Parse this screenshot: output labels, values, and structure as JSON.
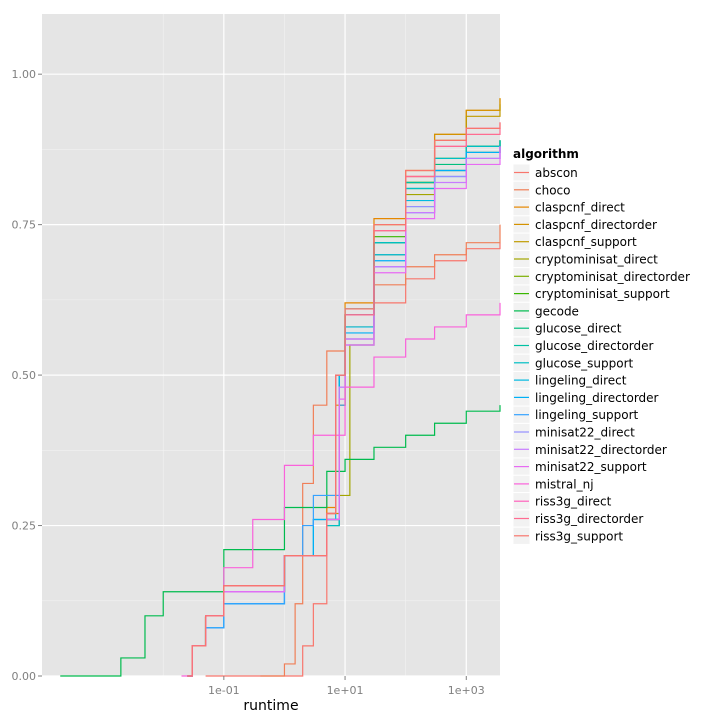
{
  "chart_data": {
    "type": "line",
    "step": true,
    "xlabel": "runtime",
    "ylabel": "",
    "x_scale": "log10",
    "xlim": [
      0.0001,
      3600
    ],
    "ylim": [
      0,
      1.1
    ],
    "x_ticks": [
      0.1,
      10,
      1000
    ],
    "x_tick_labels": [
      "1e-01",
      "1e+01",
      "1e+03"
    ],
    "x_minor_ticks": [
      0.01,
      1,
      100
    ],
    "y_ticks": [
      0,
      0.25,
      0.5,
      0.75,
      1.0
    ],
    "y_tick_labels": [
      "0.00",
      "0.25",
      "0.50",
      "0.75",
      "1.00"
    ],
    "grid": true,
    "legend_title": "algorithm",
    "legend_position": "right",
    "series": [
      {
        "name": "abscon",
        "color": "#F8766D",
        "points": [
          [
            0.05,
            0
          ],
          [
            1,
            0
          ],
          [
            2,
            0.05
          ],
          [
            3,
            0.12
          ],
          [
            5,
            0.3
          ],
          [
            8,
            0.5
          ],
          [
            10,
            0.56
          ],
          [
            30,
            0.62
          ],
          [
            100,
            0.66
          ],
          [
            300,
            0.69
          ],
          [
            1000,
            0.71
          ],
          [
            3600,
            0.72
          ]
        ]
      },
      {
        "name": "choco",
        "color": "#F07F58",
        "points": [
          [
            0.4,
            0
          ],
          [
            1,
            0.02
          ],
          [
            1.5,
            0.12
          ],
          [
            2,
            0.32
          ],
          [
            3,
            0.45
          ],
          [
            5,
            0.54
          ],
          [
            10,
            0.6
          ],
          [
            30,
            0.65
          ],
          [
            100,
            0.68
          ],
          [
            300,
            0.7
          ],
          [
            1000,
            0.72
          ],
          [
            3600,
            0.75
          ]
        ]
      },
      {
        "name": "claspcnf_direct",
        "color": "#E58700",
        "points": [
          [
            0.025,
            0
          ],
          [
            0.03,
            0.05
          ],
          [
            0.05,
            0.1
          ],
          [
            0.1,
            0.15
          ],
          [
            1,
            0.2
          ],
          [
            5,
            0.28
          ],
          [
            7,
            0.5
          ],
          [
            10,
            0.62
          ],
          [
            30,
            0.76
          ],
          [
            100,
            0.84
          ],
          [
            300,
            0.9
          ],
          [
            1000,
            0.94
          ],
          [
            3600,
            0.96
          ]
        ]
      },
      {
        "name": "claspcnf_directorder",
        "color": "#D49200",
        "points": [
          [
            0.025,
            0
          ],
          [
            0.03,
            0.05
          ],
          [
            0.05,
            0.1
          ],
          [
            0.1,
            0.15
          ],
          [
            1,
            0.2
          ],
          [
            5,
            0.27
          ],
          [
            7,
            0.45
          ],
          [
            10,
            0.6
          ],
          [
            30,
            0.75
          ],
          [
            100,
            0.83
          ],
          [
            300,
            0.9
          ],
          [
            1000,
            0.94
          ],
          [
            3600,
            0.96
          ]
        ]
      },
      {
        "name": "claspcnf_support",
        "color": "#C09B00",
        "points": [
          [
            0.025,
            0
          ],
          [
            0.03,
            0.05
          ],
          [
            0.05,
            0.1
          ],
          [
            0.1,
            0.15
          ],
          [
            1,
            0.2
          ],
          [
            5,
            0.27
          ],
          [
            8,
            0.45
          ],
          [
            10,
            0.58
          ],
          [
            30,
            0.74
          ],
          [
            100,
            0.82
          ],
          [
            300,
            0.89
          ],
          [
            1000,
            0.93
          ],
          [
            3600,
            0.95
          ]
        ]
      },
      {
        "name": "cryptominisat_direct",
        "color": "#A3A500",
        "points": [
          [
            0.025,
            0
          ],
          [
            0.03,
            0.05
          ],
          [
            0.05,
            0.1
          ],
          [
            0.1,
            0.14
          ],
          [
            1,
            0.2
          ],
          [
            5,
            0.26
          ],
          [
            8,
            0.3
          ],
          [
            12,
            0.55
          ],
          [
            30,
            0.7
          ],
          [
            100,
            0.8
          ],
          [
            300,
            0.84
          ],
          [
            1000,
            0.87
          ],
          [
            3600,
            0.89
          ]
        ]
      },
      {
        "name": "cryptominisat_directorder",
        "color": "#7CAE00",
        "points": [
          [
            0.025,
            0
          ],
          [
            0.03,
            0.05
          ],
          [
            0.05,
            0.1
          ],
          [
            0.1,
            0.14
          ],
          [
            1,
            0.2
          ],
          [
            5,
            0.26
          ],
          [
            8,
            0.5
          ],
          [
            10,
            0.6
          ],
          [
            30,
            0.72
          ],
          [
            100,
            0.82
          ],
          [
            300,
            0.86
          ],
          [
            1000,
            0.88
          ],
          [
            3600,
            0.89
          ]
        ]
      },
      {
        "name": "cryptominisat_support",
        "color": "#39B600",
        "points": [
          [
            0.025,
            0
          ],
          [
            0.03,
            0.05
          ],
          [
            0.05,
            0.1
          ],
          [
            0.1,
            0.14
          ],
          [
            1,
            0.2
          ],
          [
            5,
            0.26
          ],
          [
            8,
            0.5
          ],
          [
            10,
            0.6
          ],
          [
            30,
            0.73
          ],
          [
            100,
            0.82
          ],
          [
            300,
            0.86
          ],
          [
            1000,
            0.88
          ],
          [
            3600,
            0.89
          ]
        ]
      },
      {
        "name": "gecode",
        "color": "#00BB4E",
        "points": [
          [
            0.0002,
            0
          ],
          [
            0.002,
            0.03
          ],
          [
            0.005,
            0.1
          ],
          [
            0.01,
            0.14
          ],
          [
            0.1,
            0.21
          ],
          [
            1,
            0.28
          ],
          [
            5,
            0.34
          ],
          [
            10,
            0.36
          ],
          [
            30,
            0.38
          ],
          [
            100,
            0.4
          ],
          [
            300,
            0.42
          ],
          [
            1000,
            0.44
          ],
          [
            3600,
            0.45
          ]
        ]
      },
      {
        "name": "glucose_direct",
        "color": "#00BF7D",
        "points": [
          [
            0.025,
            0
          ],
          [
            0.03,
            0.05
          ],
          [
            0.05,
            0.1
          ],
          [
            0.1,
            0.14
          ],
          [
            1,
            0.2
          ],
          [
            5,
            0.25
          ],
          [
            8,
            0.5
          ],
          [
            10,
            0.6
          ],
          [
            30,
            0.72
          ],
          [
            100,
            0.81
          ],
          [
            300,
            0.85
          ],
          [
            1000,
            0.87
          ],
          [
            3600,
            0.89
          ]
        ]
      },
      {
        "name": "glucose_directorder",
        "color": "#00C1A3",
        "points": [
          [
            0.025,
            0
          ],
          [
            0.03,
            0.05
          ],
          [
            0.05,
            0.1
          ],
          [
            0.1,
            0.14
          ],
          [
            1,
            0.2
          ],
          [
            5,
            0.25
          ],
          [
            8,
            0.5
          ],
          [
            10,
            0.61
          ],
          [
            30,
            0.72
          ],
          [
            100,
            0.82
          ],
          [
            300,
            0.86
          ],
          [
            1000,
            0.88
          ],
          [
            3600,
            0.89
          ]
        ]
      },
      {
        "name": "glucose_support",
        "color": "#00BFC4",
        "points": [
          [
            0.025,
            0
          ],
          [
            0.03,
            0.05
          ],
          [
            0.05,
            0.1
          ],
          [
            0.1,
            0.14
          ],
          [
            1,
            0.2
          ],
          [
            5,
            0.25
          ],
          [
            8,
            0.5
          ],
          [
            10,
            0.6
          ],
          [
            30,
            0.72
          ],
          [
            100,
            0.81
          ],
          [
            300,
            0.86
          ],
          [
            1000,
            0.88
          ],
          [
            3600,
            0.89
          ]
        ]
      },
      {
        "name": "lingeling_direct",
        "color": "#00BAE0",
        "points": [
          [
            0.025,
            0
          ],
          [
            0.03,
            0.05
          ],
          [
            0.05,
            0.08
          ],
          [
            0.1,
            0.12
          ],
          [
            1,
            0.2
          ],
          [
            3,
            0.26
          ],
          [
            7,
            0.5
          ],
          [
            10,
            0.58
          ],
          [
            30,
            0.7
          ],
          [
            100,
            0.79
          ],
          [
            300,
            0.84
          ],
          [
            1000,
            0.87
          ],
          [
            3600,
            0.88
          ]
        ]
      },
      {
        "name": "lingeling_directorder",
        "color": "#00B0F6",
        "points": [
          [
            0.025,
            0
          ],
          [
            0.03,
            0.05
          ],
          [
            0.05,
            0.08
          ],
          [
            0.1,
            0.12
          ],
          [
            1,
            0.2
          ],
          [
            3,
            0.26
          ],
          [
            8,
            0.5
          ],
          [
            10,
            0.57
          ],
          [
            30,
            0.69
          ],
          [
            100,
            0.78
          ],
          [
            300,
            0.84
          ],
          [
            1000,
            0.87
          ],
          [
            3600,
            0.88
          ]
        ]
      },
      {
        "name": "lingeling_support",
        "color": "#35A2FF",
        "points": [
          [
            0.025,
            0
          ],
          [
            0.03,
            0.05
          ],
          [
            0.05,
            0.08
          ],
          [
            0.1,
            0.12
          ],
          [
            1,
            0.2
          ],
          [
            2,
            0.25
          ],
          [
            3,
            0.3
          ],
          [
            8,
            0.45
          ],
          [
            10,
            0.55
          ],
          [
            30,
            0.68
          ],
          [
            100,
            0.77
          ],
          [
            300,
            0.83
          ],
          [
            1000,
            0.86
          ],
          [
            3600,
            0.88
          ]
        ]
      },
      {
        "name": "minisat22_direct",
        "color": "#9590FF",
        "points": [
          [
            0.025,
            0
          ],
          [
            0.03,
            0.05
          ],
          [
            0.05,
            0.1
          ],
          [
            0.1,
            0.14
          ],
          [
            1,
            0.2
          ],
          [
            5,
            0.26
          ],
          [
            8,
            0.48
          ],
          [
            10,
            0.56
          ],
          [
            30,
            0.68
          ],
          [
            100,
            0.78
          ],
          [
            300,
            0.83
          ],
          [
            1000,
            0.86
          ],
          [
            3600,
            0.88
          ]
        ]
      },
      {
        "name": "minisat22_directorder",
        "color": "#C77CFF",
        "points": [
          [
            0.025,
            0
          ],
          [
            0.03,
            0.05
          ],
          [
            0.05,
            0.1
          ],
          [
            0.1,
            0.14
          ],
          [
            1,
            0.2
          ],
          [
            5,
            0.26
          ],
          [
            8,
            0.48
          ],
          [
            10,
            0.56
          ],
          [
            30,
            0.68
          ],
          [
            100,
            0.77
          ],
          [
            300,
            0.82
          ],
          [
            1000,
            0.86
          ],
          [
            3600,
            0.88
          ]
        ]
      },
      {
        "name": "minisat22_support",
        "color": "#E76BF3",
        "points": [
          [
            0.025,
            0
          ],
          [
            0.03,
            0.05
          ],
          [
            0.05,
            0.1
          ],
          [
            0.1,
            0.14
          ],
          [
            1,
            0.2
          ],
          [
            5,
            0.26
          ],
          [
            8,
            0.46
          ],
          [
            10,
            0.55
          ],
          [
            30,
            0.67
          ],
          [
            100,
            0.76
          ],
          [
            300,
            0.81
          ],
          [
            1000,
            0.85
          ],
          [
            3600,
            0.88
          ]
        ]
      },
      {
        "name": "mistral_nj",
        "color": "#FA62DB",
        "points": [
          [
            0.02,
            0
          ],
          [
            0.03,
            0.05
          ],
          [
            0.05,
            0.1
          ],
          [
            0.1,
            0.18
          ],
          [
            0.3,
            0.26
          ],
          [
            1,
            0.35
          ],
          [
            3,
            0.4
          ],
          [
            10,
            0.48
          ],
          [
            30,
            0.53
          ],
          [
            100,
            0.56
          ],
          [
            300,
            0.58
          ],
          [
            1000,
            0.6
          ],
          [
            3600,
            0.62
          ]
        ]
      },
      {
        "name": "riss3g_direct",
        "color": "#FF62BC",
        "points": [
          [
            0.025,
            0
          ],
          [
            0.03,
            0.05
          ],
          [
            0.05,
            0.1
          ],
          [
            0.1,
            0.15
          ],
          [
            1,
            0.2
          ],
          [
            5,
            0.27
          ],
          [
            7,
            0.5
          ],
          [
            10,
            0.6
          ],
          [
            30,
            0.74
          ],
          [
            100,
            0.83
          ],
          [
            300,
            0.88
          ],
          [
            1000,
            0.91
          ],
          [
            3600,
            0.92
          ]
        ]
      },
      {
        "name": "riss3g_directorder",
        "color": "#FF6C91",
        "points": [
          [
            0.025,
            0
          ],
          [
            0.03,
            0.05
          ],
          [
            0.05,
            0.1
          ],
          [
            0.1,
            0.15
          ],
          [
            1,
            0.2
          ],
          [
            5,
            0.27
          ],
          [
            7,
            0.5
          ],
          [
            10,
            0.6
          ],
          [
            30,
            0.74
          ],
          [
            100,
            0.83
          ],
          [
            300,
            0.88
          ],
          [
            1000,
            0.9
          ],
          [
            3600,
            0.91
          ]
        ]
      },
      {
        "name": "riss3g_support",
        "color": "#F8766D",
        "points": [
          [
            0.025,
            0
          ],
          [
            0.03,
            0.05
          ],
          [
            0.05,
            0.1
          ],
          [
            0.1,
            0.15
          ],
          [
            1,
            0.2
          ],
          [
            5,
            0.27
          ],
          [
            7,
            0.5
          ],
          [
            10,
            0.61
          ],
          [
            30,
            0.75
          ],
          [
            100,
            0.84
          ],
          [
            300,
            0.89
          ],
          [
            1000,
            0.91
          ],
          [
            3600,
            0.92
          ]
        ]
      }
    ]
  }
}
